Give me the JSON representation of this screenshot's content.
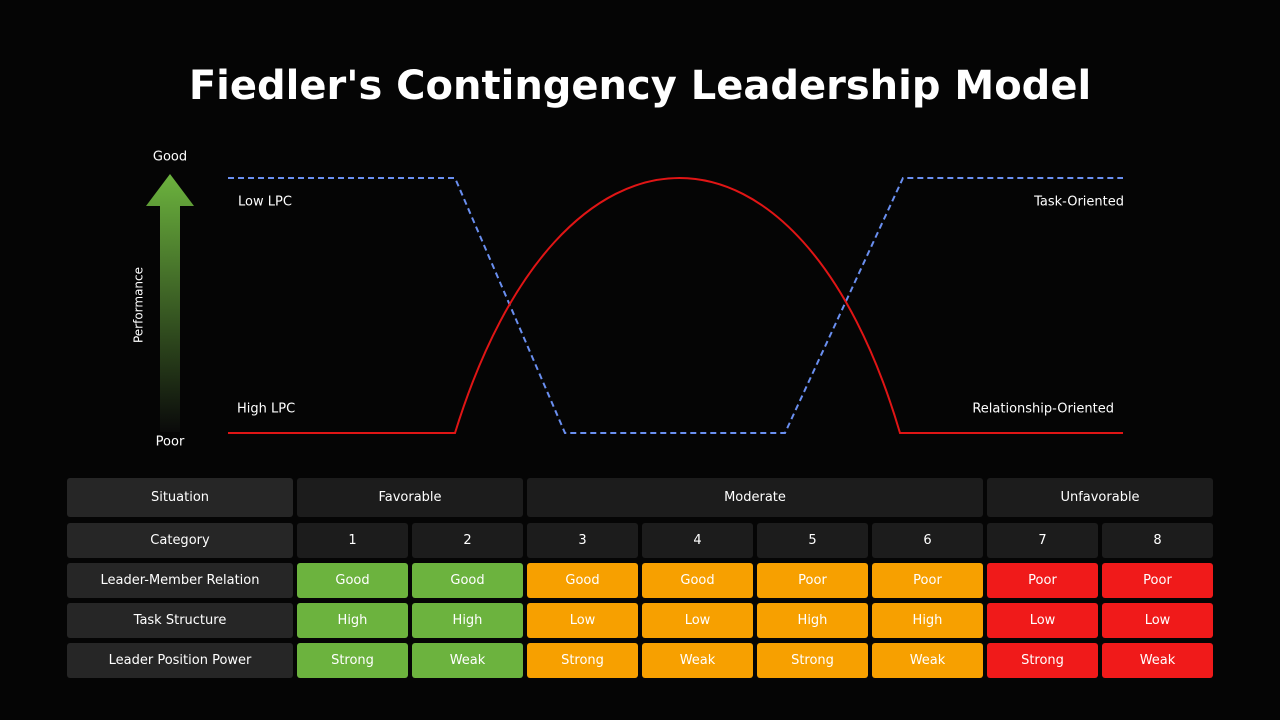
{
  "title": "Fiedler's Contingency Leadership Model",
  "diagram": {
    "axis_top": "Good",
    "axis_bottom": "Poor",
    "axis_label": "Performance",
    "low_lpc": "Low LPC",
    "high_lpc": "High LPC",
    "task_oriented": "Task-Oriented",
    "relationship_oriented": "Relationship-Oriented"
  },
  "table": {
    "situation": {
      "label": "Situation",
      "groups": [
        {
          "label": "Favorable",
          "span": 2,
          "color": "#6cb33e"
        },
        {
          "label": "Moderate",
          "span": 4,
          "color": "#f7a000"
        },
        {
          "label": "Unfavorable",
          "span": 2,
          "color": "#f01a1a"
        }
      ]
    },
    "category": {
      "label": "Category",
      "values": [
        "1",
        "2",
        "3",
        "4",
        "5",
        "6",
        "7",
        "8"
      ]
    },
    "rows": [
      {
        "label": "Leader-Member Relation",
        "values": [
          "Good",
          "Good",
          "Good",
          "Good",
          "Poor",
          "Poor",
          "Poor",
          "Poor"
        ]
      },
      {
        "label": "Task Structure",
        "values": [
          "High",
          "High",
          "Low",
          "Low",
          "High",
          "High",
          "Low",
          "Low"
        ]
      },
      {
        "label": "Leader Position Power",
        "values": [
          "Strong",
          "Weak",
          "Strong",
          "Weak",
          "Strong",
          "Weak",
          "Strong",
          "Weak"
        ]
      }
    ]
  }
}
